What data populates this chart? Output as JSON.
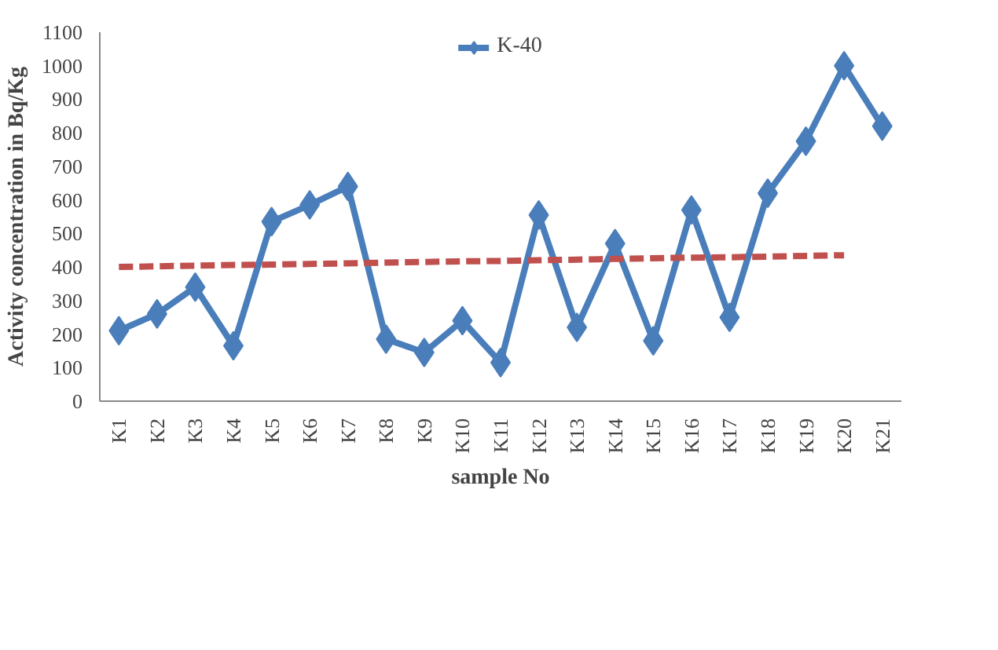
{
  "chart_data": {
    "type": "line",
    "xlabel": "sample No",
    "ylabel": "Activity concentration in Bq/Kg",
    "categories": [
      "K1",
      "K2",
      "K3",
      "K4",
      "K5",
      "K6",
      "K7",
      "K8",
      "K9",
      "K10",
      "K11",
      "K12",
      "K13",
      "K14",
      "K15",
      "K16",
      "K17",
      "K18",
      "K19",
      "K20",
      "K21"
    ],
    "series": [
      {
        "name": "K-40",
        "color": "#4a7ebb",
        "marker": "diamond",
        "values": [
          210,
          260,
          340,
          165,
          535,
          585,
          640,
          185,
          145,
          240,
          115,
          555,
          220,
          470,
          180,
          570,
          250,
          620,
          775,
          1000,
          820
        ]
      },
      {
        "color": "#c0504d",
        "marker": "none",
        "line_style": "dashed",
        "values": [
          400,
          402,
          404,
          406,
          407,
          409,
          411,
          413,
          415,
          417,
          418,
          420,
          422,
          424,
          426,
          428,
          429,
          431,
          433,
          435,
          null
        ]
      }
    ],
    "ylim": [
      0,
      1100
    ],
    "yticks": [
      0,
      100,
      200,
      300,
      400,
      500,
      600,
      700,
      800,
      900,
      1000,
      1100
    ],
    "grid": false,
    "legend": "top"
  }
}
